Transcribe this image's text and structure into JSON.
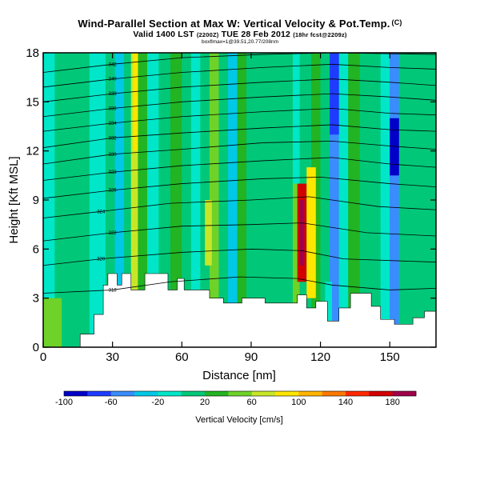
{
  "chart_data": {
    "type": "heatmap",
    "title": "Wind-Parallel Section at Max W: Vertical Velocity & Pot.Temp.",
    "title_mark": "(C)",
    "subtitle": "Valid 1400 LST",
    "subtitle_utc": "(2200Z)",
    "subtitle_date": "TUE 28 Feb 2012",
    "subtitle_run": "(18hr fcst@2209z)",
    "credit": "boxflmax=1@39.51,20.77/208nm",
    "xlabel": "Distance [nm]",
    "ylabel": "Height [Kft MSL]",
    "xlim": [
      0,
      170
    ],
    "ylim": [
      0,
      18
    ],
    "x_ticks": [
      0,
      30,
      60,
      90,
      120,
      150
    ],
    "y_ticks": [
      0,
      3,
      6,
      9,
      12,
      15,
      18
    ],
    "colorbar": {
      "label": "Vertical Velocity [cm/s]",
      "ticks": [
        -100,
        -60,
        -20,
        20,
        60,
        100,
        140,
        180
      ],
      "range": [
        -100,
        200
      ]
    },
    "columns": [
      {
        "x0": 0,
        "x1": 5,
        "w": -8
      },
      {
        "x0": 5,
        "x1": 12,
        "w": 5
      },
      {
        "x0": 12,
        "x1": 20,
        "w": 10
      },
      {
        "x0": 20,
        "x1": 27,
        "w": -5
      },
      {
        "x0": 27,
        "x1": 31,
        "w": 15
      },
      {
        "x0": 31,
        "x1": 35,
        "w": -30
      },
      {
        "x0": 35,
        "x1": 38,
        "w": 5
      },
      {
        "x0": 38,
        "x1": 41,
        "w": 70
      },
      {
        "x0": 41,
        "x1": 45,
        "w": 30
      },
      {
        "x0": 45,
        "x1": 50,
        "w": -15
      },
      {
        "x0": 50,
        "x1": 55,
        "w": 10
      },
      {
        "x0": 55,
        "x1": 60,
        "w": 25
      },
      {
        "x0": 60,
        "x1": 64,
        "w": 5
      },
      {
        "x0": 64,
        "x1": 68,
        "w": -20
      },
      {
        "x0": 68,
        "x1": 72,
        "w": 15
      },
      {
        "x0": 72,
        "x1": 76,
        "w": 40
      },
      {
        "x0": 76,
        "x1": 80,
        "w": 10
      },
      {
        "x0": 80,
        "x1": 84,
        "w": -25
      },
      {
        "x0": 84,
        "x1": 88,
        "w": 20
      },
      {
        "x0": 88,
        "x1": 93,
        "w": 5
      },
      {
        "x0": 93,
        "x1": 98,
        "w": 15
      },
      {
        "x0": 98,
        "x1": 104,
        "w": 0
      },
      {
        "x0": 104,
        "x1": 108,
        "w": 10
      },
      {
        "x0": 108,
        "x1": 111,
        "w": 40
      },
      {
        "x0": 111,
        "x1": 116,
        "w": 5
      },
      {
        "x0": 116,
        "x1": 120,
        "w": 20
      },
      {
        "x0": 120,
        "x1": 124,
        "w": 5
      },
      {
        "x0": 124,
        "x1": 128,
        "w": -45
      },
      {
        "x0": 128,
        "x1": 132,
        "w": -10
      },
      {
        "x0": 132,
        "x1": 137,
        "w": 25
      },
      {
        "x0": 137,
        "x1": 141,
        "w": 5
      },
      {
        "x0": 141,
        "x1": 146,
        "w": 0
      },
      {
        "x0": 146,
        "x1": 150,
        "w": -20
      },
      {
        "x0": 150,
        "x1": 154,
        "w": -55
      },
      {
        "x0": 154,
        "x1": 158,
        "w": 15
      },
      {
        "x0": 158,
        "x1": 164,
        "w": 5
      },
      {
        "x0": 164,
        "x1": 170,
        "w": 15
      }
    ],
    "cells": [
      {
        "x0": 110,
        "x1": 114,
        "y0": 4,
        "y1": 10,
        "w": 160
      },
      {
        "x0": 111,
        "x1": 113,
        "y0": 5,
        "y1": 9,
        "w": 190
      },
      {
        "x0": 114,
        "x1": 118,
        "y0": 3,
        "y1": 11,
        "w": 80
      },
      {
        "x0": 124,
        "x1": 128,
        "y0": 13,
        "y1": 18,
        "w": -80
      },
      {
        "x0": 150,
        "x1": 154,
        "y0": 10.5,
        "y1": 14,
        "w": -90
      },
      {
        "x0": 108,
        "x1": 111,
        "y0": 10,
        "y1": 18,
        "w": -20
      },
      {
        "x0": 39,
        "x1": 41,
        "y0": 12,
        "y1": 18,
        "w": 90
      },
      {
        "x0": 70,
        "x1": 73,
        "y0": 5,
        "y1": 9,
        "w": 70
      },
      {
        "x0": 122,
        "x1": 125,
        "y0": 1,
        "y1": 4,
        "w": -10
      },
      {
        "x0": 0,
        "x1": 8,
        "y0": 0,
        "y1": 3,
        "w": 40
      }
    ],
    "terrain": [
      [
        0,
        0
      ],
      [
        16,
        0
      ],
      [
        16,
        0.8
      ],
      [
        22,
        0.8
      ],
      [
        22,
        2
      ],
      [
        26,
        2
      ],
      [
        26,
        3.8
      ],
      [
        28,
        3.8
      ],
      [
        28,
        4.5
      ],
      [
        32,
        4.5
      ],
      [
        32,
        3.8
      ],
      [
        34,
        3.8
      ],
      [
        34,
        4.5
      ],
      [
        38,
        4.5
      ],
      [
        38,
        3.5
      ],
      [
        44,
        3.5
      ],
      [
        44,
        4.5
      ],
      [
        54,
        4.5
      ],
      [
        54,
        3.5
      ],
      [
        58,
        3.5
      ],
      [
        58,
        4.2
      ],
      [
        61,
        4.2
      ],
      [
        61,
        3.5
      ],
      [
        72,
        3.5
      ],
      [
        72,
        3
      ],
      [
        78,
        3
      ],
      [
        78,
        2.7
      ],
      [
        86,
        2.7
      ],
      [
        86,
        3
      ],
      [
        96,
        3
      ],
      [
        96,
        2.7
      ],
      [
        110,
        2.7
      ],
      [
        110,
        3.2
      ],
      [
        114,
        3.2
      ],
      [
        114,
        2.4
      ],
      [
        118,
        2.4
      ],
      [
        118,
        2.8
      ],
      [
        123,
        2.8
      ],
      [
        123,
        1.6
      ],
      [
        128,
        1.6
      ],
      [
        128,
        2.4
      ],
      [
        133,
        2.4
      ],
      [
        133,
        3.3
      ],
      [
        136,
        3.3
      ],
      [
        136,
        3.3
      ],
      [
        142,
        3.3
      ],
      [
        142,
        2.5
      ],
      [
        146,
        2.5
      ],
      [
        146,
        1.7
      ],
      [
        152,
        1.7
      ],
      [
        152,
        1.4
      ],
      [
        160,
        1.4
      ],
      [
        160,
        1.8
      ],
      [
        165,
        1.8
      ],
      [
        165,
        2.2
      ],
      [
        170,
        2.2
      ],
      [
        170,
        0
      ]
    ],
    "isentropes": [
      {
        "label": "318",
        "points": [
          [
            0,
            3.3
          ],
          [
            30,
            3.5
          ],
          [
            55,
            4.0
          ],
          [
            85,
            4.3
          ],
          [
            110,
            4.2
          ],
          [
            125,
            3.8
          ],
          [
            150,
            3.5
          ],
          [
            170,
            3.6
          ]
        ]
      },
      {
        "label": "320",
        "points": [
          [
            0,
            5.0
          ],
          [
            25,
            5.4
          ],
          [
            60,
            5.8
          ],
          [
            90,
            6.0
          ],
          [
            112,
            5.9
          ],
          [
            130,
            5.4
          ],
          [
            170,
            5.2
          ]
        ]
      },
      {
        "label": "322",
        "points": [
          [
            0,
            6.5
          ],
          [
            30,
            7.0
          ],
          [
            60,
            7.4
          ],
          [
            90,
            7.5
          ],
          [
            112,
            7.6
          ],
          [
            140,
            7.0
          ],
          [
            170,
            6.8
          ]
        ]
      },
      {
        "label": "324",
        "points": [
          [
            0,
            7.9
          ],
          [
            25,
            8.3
          ],
          [
            55,
            8.8
          ],
          [
            90,
            9.0
          ],
          [
            115,
            9.2
          ],
          [
            145,
            8.6
          ],
          [
            170,
            8.4
          ]
        ]
      },
      {
        "label": "326",
        "points": [
          [
            0,
            9.1
          ],
          [
            30,
            9.6
          ],
          [
            60,
            10.0
          ],
          [
            95,
            10.3
          ],
          [
            120,
            10.4
          ],
          [
            150,
            10.0
          ],
          [
            170,
            9.8
          ]
        ]
      },
      {
        "label": "328",
        "points": [
          [
            0,
            10.2
          ],
          [
            30,
            10.7
          ],
          [
            60,
            11.1
          ],
          [
            95,
            11.4
          ],
          [
            125,
            11.6
          ],
          [
            150,
            11.2
          ],
          [
            170,
            11.0
          ]
        ]
      },
      {
        "label": "330",
        "points": [
          [
            0,
            11.2
          ],
          [
            30,
            11.8
          ],
          [
            60,
            12.1
          ],
          [
            95,
            12.5
          ],
          [
            125,
            12.6
          ],
          [
            150,
            12.3
          ],
          [
            170,
            12.1
          ]
        ]
      },
      {
        "label": "332",
        "points": [
          [
            0,
            12.2
          ],
          [
            30,
            12.8
          ],
          [
            60,
            13.1
          ],
          [
            95,
            13.4
          ],
          [
            125,
            13.6
          ],
          [
            150,
            13.3
          ],
          [
            170,
            13.2
          ]
        ]
      },
      {
        "label": "334",
        "points": [
          [
            0,
            13.2
          ],
          [
            30,
            13.7
          ],
          [
            60,
            14.1
          ],
          [
            95,
            14.4
          ],
          [
            125,
            14.6
          ],
          [
            150,
            14.3
          ],
          [
            170,
            14.2
          ]
        ]
      },
      {
        "label": "336",
        "points": [
          [
            0,
            14.1
          ],
          [
            30,
            14.6
          ],
          [
            60,
            15.0
          ],
          [
            95,
            15.3
          ],
          [
            125,
            15.5
          ],
          [
            150,
            15.3
          ],
          [
            170,
            15.1
          ]
        ]
      },
      {
        "label": "338",
        "points": [
          [
            0,
            15.0
          ],
          [
            30,
            15.5
          ],
          [
            60,
            15.9
          ],
          [
            95,
            16.2
          ],
          [
            125,
            16.4
          ],
          [
            150,
            16.2
          ],
          [
            170,
            16.0
          ]
        ]
      },
      {
        "label": "340",
        "points": [
          [
            0,
            15.9
          ],
          [
            30,
            16.4
          ],
          [
            60,
            16.8
          ],
          [
            95,
            17.1
          ],
          [
            125,
            17.3
          ],
          [
            150,
            17.1
          ],
          [
            170,
            17.0
          ]
        ]
      },
      {
        "label": "342",
        "points": [
          [
            0,
            16.8
          ],
          [
            30,
            17.3
          ],
          [
            60,
            17.7
          ],
          [
            95,
            17.9
          ],
          [
            125,
            18.0
          ],
          [
            170,
            17.9
          ]
        ]
      }
    ]
  }
}
